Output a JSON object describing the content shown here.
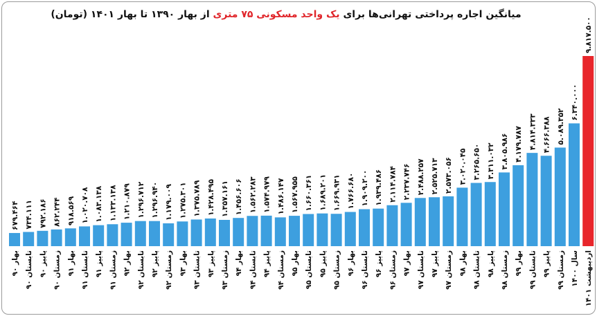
{
  "chart_data": {
    "type": "bar",
    "title": {
      "part1": "میانگین اجاره پرداختی تهرانی‌ها برای",
      "highlight": "یک واحد مسکونی ۷۵ متری",
      "part2": "از بهار ۱۳۹۰ تا بهار ۱۴۰۱ (تومان)"
    },
    "categories": [
      "بهار ۹۰",
      "تابستان ۹۰",
      "پاییز ۹۰",
      "زمستان ۹۰",
      "بهار ۹۱",
      "تابستان ۹۱",
      "پاییز ۹۱",
      "زمستان ۹۱",
      "بهار ۹۲",
      "تابستان ۹۲",
      "پاییز ۹۲",
      "زمستان ۹۲",
      "بهار ۹۳",
      "تابستان ۹۳",
      "پاییز ۹۳",
      "زمستان ۹۳",
      "بهار ۹۴",
      "تابستان ۹۴",
      "پاییز ۹۴",
      "زمستان ۹۴",
      "بهار ۹۵",
      "تابستان ۹۵",
      "پاییز ۹۵",
      "زمستان ۹۵",
      "بهار ۹۶",
      "تابستان ۹۶",
      "پاییز ۹۶",
      "زمستان ۹۶",
      "بهار ۹۷",
      "تابستان ۹۷",
      "پاییز ۹۷",
      "زمستان ۹۷",
      "بهار ۹۸",
      "تابستان ۹۸",
      "پاییز ۹۸",
      "زمستان ۹۸",
      "بهار ۹۹",
      "تابستان ۹۹",
      "پاییز ۹۹",
      "زمستان ۹۹",
      "سال ۱۴۰۰",
      "اردیبهشت ۱۴۰۱"
    ],
    "values": [
      679464,
      734111,
      792186,
      862244,
      918569,
      1020708,
      1083138,
      1133138,
      1210879,
      1296712,
      1296940,
      1179009,
      1275301,
      1375789,
      1428495,
      1357161,
      1456606,
      1562283,
      1574979,
      1486147,
      1567955,
      1660361,
      1689201,
      1669931,
      1766680,
      1909200,
      1939486,
      2114784,
      2237746,
      2488257,
      2525713,
      2573056,
      3020045,
      3265650,
      3311032,
      3805986,
      4179787,
      4814333,
      4666388,
      5089352,
      6340000,
      9817500
    ],
    "labels": [
      "۶۷۹.۴۶۴",
      "۷۳۴.۱۱۱",
      "۷۹۲.۱۸۶",
      "۸۶۲.۲۴۴",
      "۹۱۸.۵۶۹",
      "۱.۰۲۰.۷۰۸",
      "۱.۰۸۳.۱۳۸",
      "۱.۱۳۳.۱۳۸",
      "۱.۲۱۰.۸۷۹",
      "۱.۲۹۶.۷۱۲",
      "۱.۲۹۶.۹۴۰",
      "۱.۱۷۹.۰۰۹",
      "۱.۲۷۵.۳۰۱",
      "۱.۳۷۵.۷۸۹",
      "۱.۴۲۸.۴۹۵",
      "۱.۳۵۷.۱۶۱",
      "۱.۴۵۶.۶۰۶",
      "۱.۵۶۲.۲۸۳",
      "۱.۵۷۴.۹۷۹",
      "۱.۴۸۶.۱۴۷",
      "۱.۵۶۷.۹۵۵",
      "۱.۶۶۰.۳۶۱",
      "۱.۶۸۹.۲۰۱",
      "۱.۶۶۹.۹۳۱",
      "۱.۷۶۶.۶۸۰",
      "۱.۹۰۹.۲۰۰",
      "۱.۹۳۹.۴۸۶",
      "۲.۱۱۴.۷۸۴",
      "۲.۲۳۷.۷۴۶",
      "۲.۴۸۸.۲۵۷",
      "۲.۵۲۵.۷۱۳",
      "۲.۵۷۳.۰۵۶",
      "۳.۰۲۰.۰۴۵",
      "۳.۲۶۵.۶۵۰",
      "۳.۳۱۱.۰۳۲",
      "۳.۸۰۵.۹۸۶",
      "۴.۱۷۹.۷۸۷",
      "۴.۸۱۴.۳۳۳",
      "۴.۶۶۶.۳۸۸",
      "۵.۰۸۹.۳۵۲",
      "۶.۳۴۰.۰۰۰",
      "۹.۸۱۷.۵۰۰"
    ],
    "highlight_index": 41,
    "ylim": [
      0,
      9817500
    ],
    "colors": {
      "bar": "#3d9fdf",
      "highlight": "#e8262b",
      "text": "#111111"
    },
    "grid": false,
    "legend": "none"
  }
}
